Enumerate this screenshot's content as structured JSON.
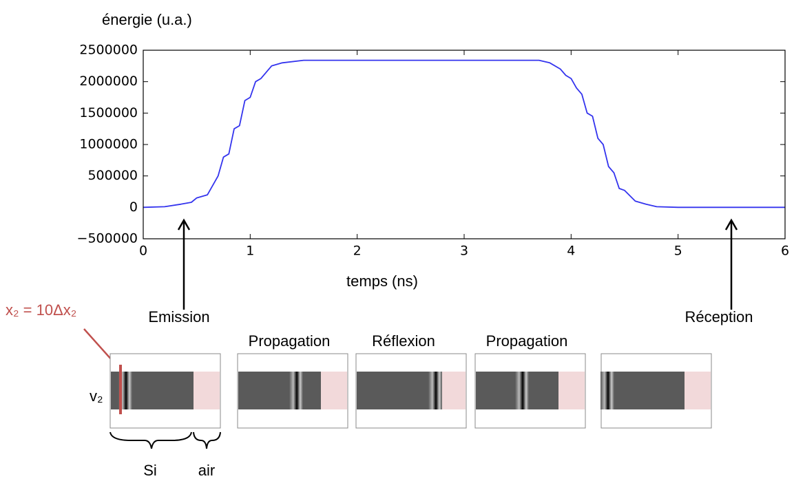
{
  "chart_data": {
    "type": "line",
    "ylabel": "énergie (u.a.)",
    "xlabel": "temps (ns)",
    "x": [
      0,
      0.2,
      0.35,
      0.45,
      0.5,
      0.6,
      0.7,
      0.75,
      0.8,
      0.85,
      0.9,
      0.95,
      1.0,
      1.05,
      1.1,
      1.2,
      1.3,
      1.5,
      3.7,
      3.8,
      3.9,
      3.95,
      4.0,
      4.05,
      4.1,
      4.15,
      4.2,
      4.25,
      4.3,
      4.35,
      4.4,
      4.45,
      4.5,
      4.6,
      4.7,
      4.8,
      5.0,
      6.0
    ],
    "values": [
      0,
      10000,
      50000,
      80000,
      150000,
      200000,
      500000,
      800000,
      850000,
      1250000,
      1300000,
      1700000,
      1750000,
      2000000,
      2050000,
      2250000,
      2300000,
      2340000,
      2340000,
      2300000,
      2200000,
      2100000,
      2050000,
      1900000,
      1800000,
      1500000,
      1450000,
      1100000,
      1000000,
      650000,
      550000,
      300000,
      270000,
      100000,
      50000,
      10000,
      0,
      0
    ],
    "color": "#3333ee",
    "xlim": [
      0,
      6
    ],
    "xticks": [
      0,
      1,
      2,
      3,
      4,
      5,
      6
    ],
    "ylim": [
      -500000,
      2500000
    ],
    "yticks": [
      {
        "value": -500000,
        "label": "−500000"
      },
      0,
      500000,
      1000000,
      1500000,
      2000000,
      2500000
    ],
    "annotations": [
      "Emission",
      "Réception",
      "Propagation",
      "Réflexion",
      "Propagation",
      "x₂ = 10Δx₂",
      "v₂",
      "Si",
      "air"
    ]
  }
}
